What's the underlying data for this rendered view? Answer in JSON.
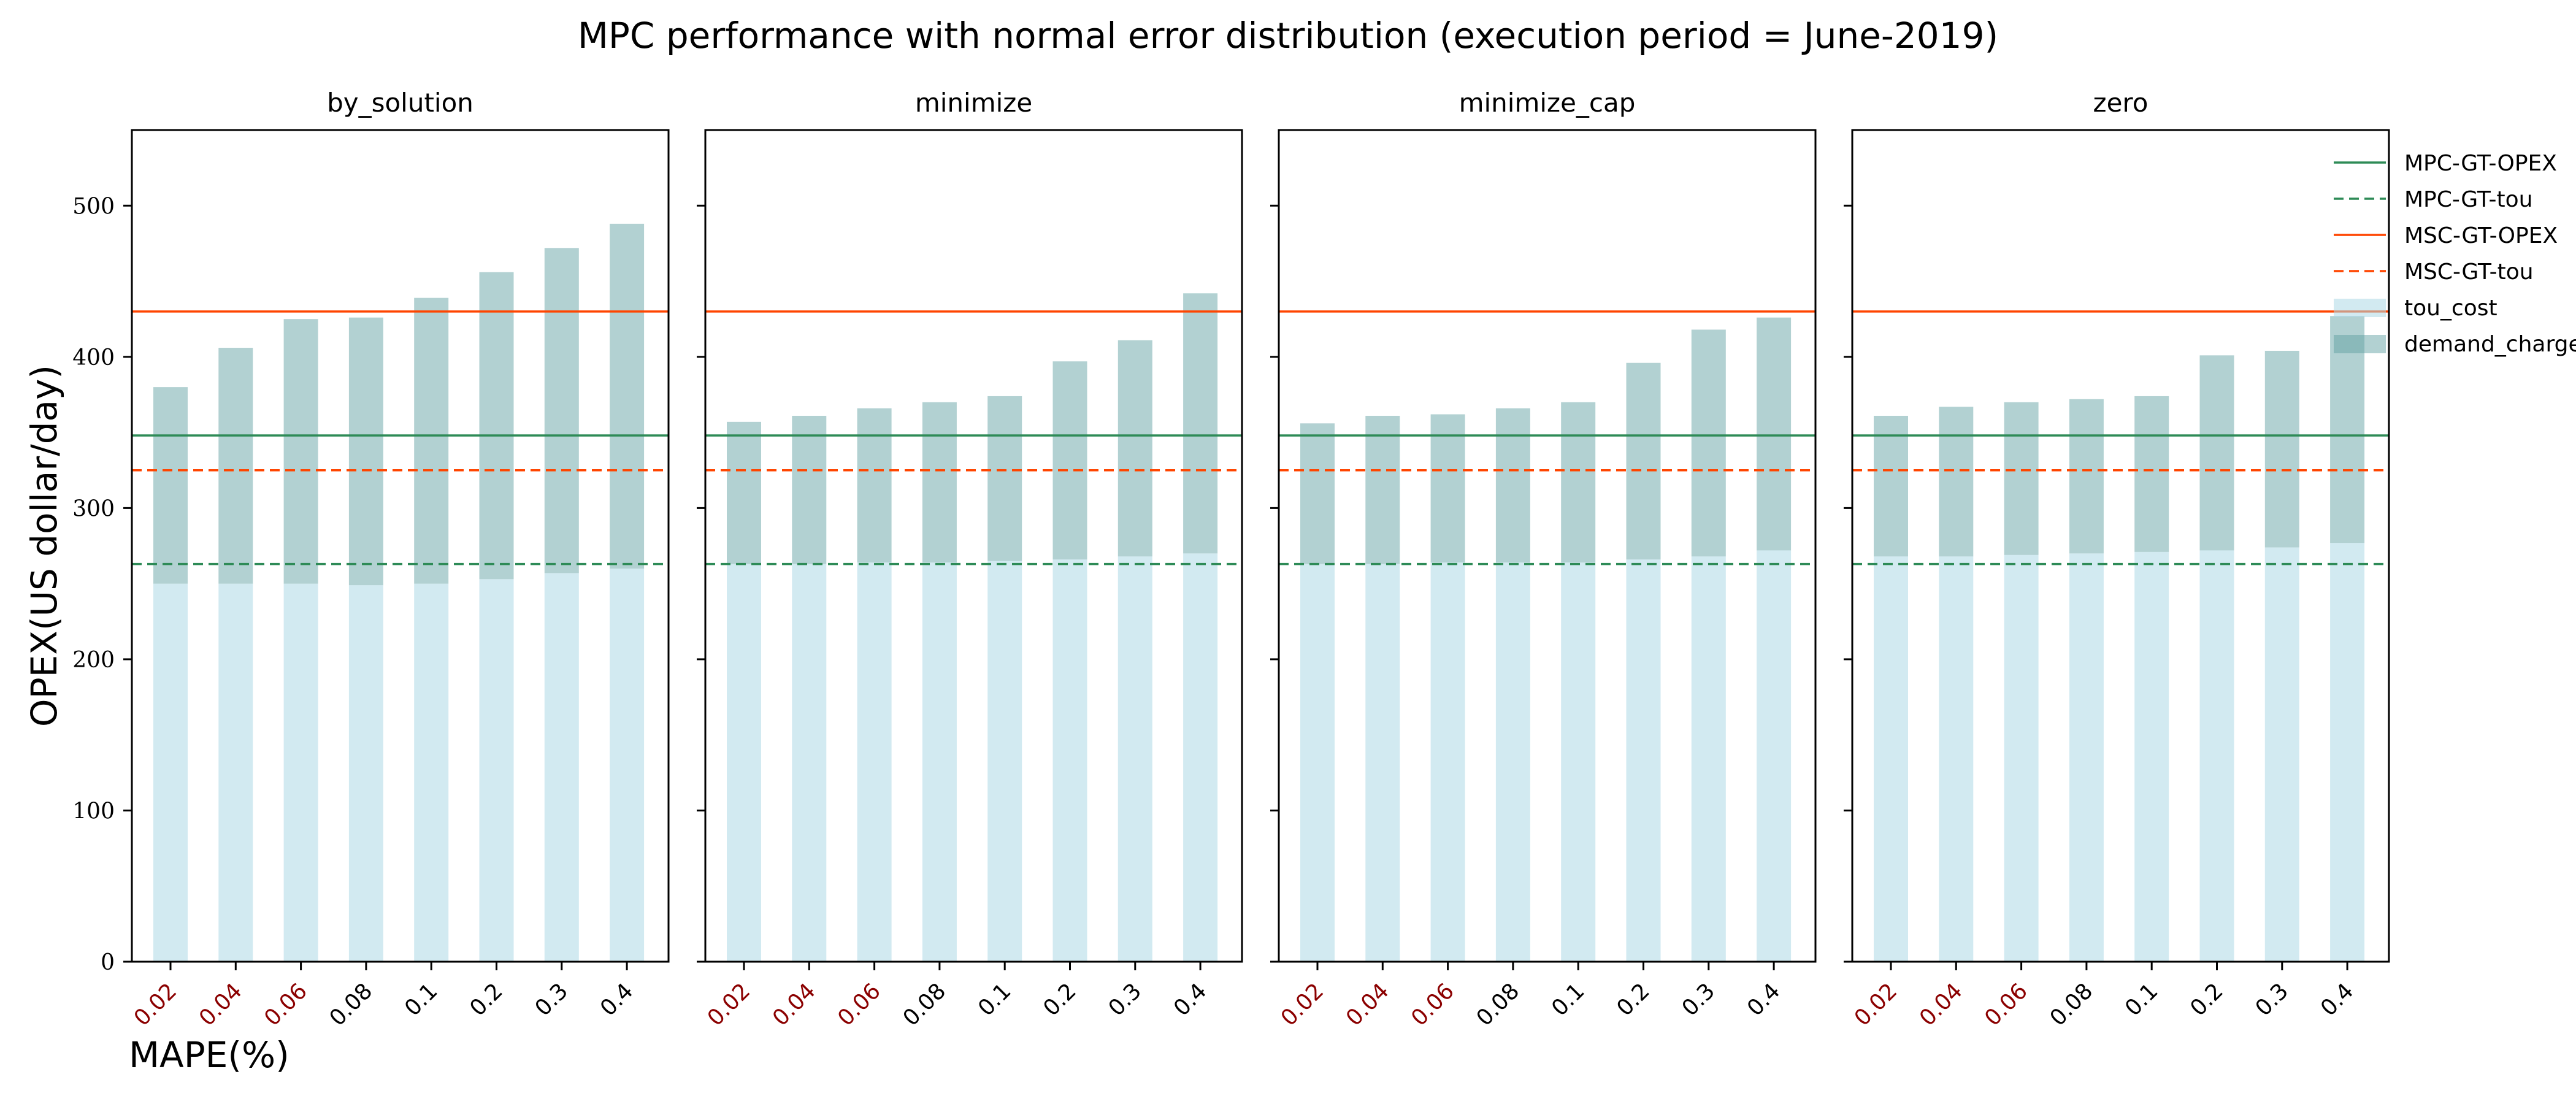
{
  "chart_data": {
    "type": "bar",
    "stacked": true,
    "title": "MPC performance with normal error distribution (execution period = June-2019)",
    "xlabel": "MAPE(%)",
    "ylabel": "OPEX(US dollar/day)",
    "ylim": [
      0,
      550
    ],
    "yticks": [
      0,
      100,
      200,
      300,
      400,
      500
    ],
    "categories": [
      "0.02",
      "0.04",
      "0.06",
      "0.08",
      "0.1",
      "0.2",
      "0.3",
      "0.4"
    ],
    "highlighted_categories": [
      "0.02",
      "0.04",
      "0.06"
    ],
    "highlight_color": "#8b0000",
    "grid": false,
    "legend_position": "right",
    "colors": {
      "tou_cost": "#add8e6",
      "demand_charge": "#5f9ea0",
      "MPC-GT-OPEX": "#2e8b57",
      "MPC-GT-tou": "#2e8b57",
      "MSC-GT-OPEX": "#ff4500",
      "MSC-GT-tou": "#ff4500"
    },
    "reference_lines": [
      {
        "name": "MPC-GT-OPEX",
        "value": 348,
        "style": "solid"
      },
      {
        "name": "MPC-GT-tou",
        "value": 263,
        "style": "dashed"
      },
      {
        "name": "MSC-GT-OPEX",
        "value": 430,
        "style": "solid"
      },
      {
        "name": "MSC-GT-tou",
        "value": 325,
        "style": "dashed"
      }
    ],
    "bar_series": [
      "tou_cost",
      "demand_charge"
    ],
    "panels": [
      {
        "name": "by_solution",
        "tou_cost": [
          250,
          250,
          250,
          249,
          250,
          253,
          257,
          260
        ],
        "demand_charge": [
          130,
          156,
          175,
          177,
          189,
          203,
          215,
          228
        ]
      },
      {
        "name": "minimize",
        "tou_cost": [
          263,
          263,
          264,
          264,
          265,
          266,
          268,
          270
        ],
        "demand_charge": [
          94,
          98,
          102,
          106,
          109,
          131,
          143,
          172
        ]
      },
      {
        "name": "minimize_cap",
        "tou_cost": [
          263,
          263,
          264,
          264,
          264,
          266,
          268,
          272
        ],
        "demand_charge": [
          93,
          98,
          98,
          102,
          106,
          130,
          150,
          154
        ]
      },
      {
        "name": "zero",
        "tou_cost": [
          268,
          268,
          269,
          270,
          271,
          272,
          274,
          277
        ],
        "demand_charge": [
          93,
          99,
          101,
          102,
          103,
          129,
          130,
          150
        ]
      }
    ]
  }
}
